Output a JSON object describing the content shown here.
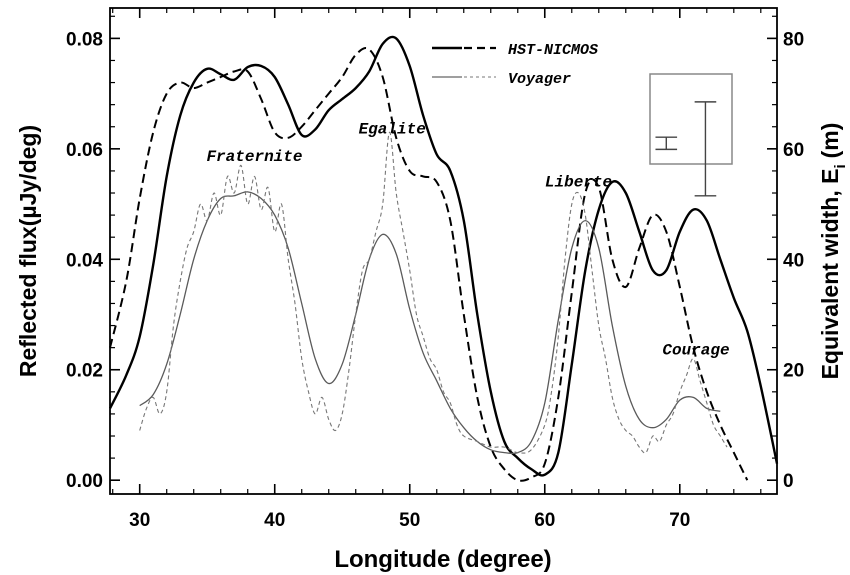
{
  "chart_data": {
    "type": "line",
    "xlabel": "Longitude (degree)",
    "ylabel_left": "Reflected flux(µJy/deg)",
    "ylabel_right": "Equivalent width, E",
    "ylabel_right_subscript": "i",
    "ylabel_right_unit": "(m)",
    "xlim": [
      27.8,
      77.2
    ],
    "ylim_left": [
      -0.0025,
      0.0855
    ],
    "ylim_right": [
      -2.5,
      85.5
    ],
    "x_ticks": [
      30,
      40,
      50,
      60,
      70
    ],
    "y_left_ticks": [
      0.0,
      0.02,
      0.04,
      0.06,
      0.08
    ],
    "y_left_tick_labels": [
      "0.00",
      "0.02",
      "0.04",
      "0.06",
      "0.08"
    ],
    "y_right_ticks": [
      0,
      20,
      40,
      60,
      80
    ],
    "grid": false,
    "legend_position": "top-right",
    "legend": [
      {
        "group": "HST-NICMOS",
        "label": "HST-NICMOS"
      },
      {
        "group": "Voyager",
        "label": "Voyager"
      }
    ],
    "annotations": [
      {
        "text": "Fraternite",
        "x": 38.5,
        "y": 0.0578
      },
      {
        "text": "Egalite",
        "x": 48.7,
        "y": 0.0628
      },
      {
        "text": "Liberte",
        "x": 62.5,
        "y": 0.0532
      },
      {
        "text": "Courage",
        "x": 71.2,
        "y": 0.0228
      }
    ],
    "series": [
      {
        "name": "HST-NICMOS",
        "group": "HST-NICMOS",
        "style": "solid-thick",
        "axis": "left",
        "x": [
          27.8,
          29,
          30,
          31,
          32,
          33,
          34,
          35,
          36,
          37,
          38,
          39,
          40,
          41,
          42,
          43,
          44,
          45,
          46,
          47,
          48,
          49,
          50,
          51,
          52,
          53,
          54,
          55,
          56,
          57,
          58,
          59,
          60,
          61,
          62,
          63,
          64,
          65,
          66,
          67,
          68,
          69,
          70,
          71,
          72,
          73,
          74,
          75,
          76,
          77.2
        ],
        "y": [
          0.013,
          0.019,
          0.026,
          0.039,
          0.055,
          0.066,
          0.072,
          0.0745,
          0.0735,
          0.0725,
          0.0748,
          0.075,
          0.073,
          0.068,
          0.0625,
          0.0635,
          0.067,
          0.069,
          0.071,
          0.074,
          0.079,
          0.08,
          0.075,
          0.066,
          0.059,
          0.056,
          0.047,
          0.03,
          0.016,
          0.007,
          0.004,
          0.002,
          0.001,
          0.005,
          0.021,
          0.038,
          0.049,
          0.054,
          0.052,
          0.045,
          0.038,
          0.038,
          0.045,
          0.049,
          0.047,
          0.04,
          0.033,
          0.027,
          0.017,
          0.003
        ]
      },
      {
        "name": "HST-NICMOS",
        "group": "HST-NICMOS",
        "style": "dashed-thick",
        "axis": "right",
        "x": [
          27.8,
          29,
          30,
          31,
          32,
          33,
          34,
          35,
          36,
          37,
          38,
          39,
          40,
          41,
          42,
          43,
          44,
          45,
          46,
          47,
          48,
          49,
          50,
          51,
          52,
          53,
          54,
          55,
          56,
          57,
          58,
          59,
          60,
          61,
          62,
          63,
          64,
          65,
          66,
          67,
          68,
          69,
          70,
          71,
          72,
          73,
          74,
          75
        ],
        "y": [
          24,
          36,
          51,
          63,
          70,
          72,
          71,
          72,
          73,
          74,
          74,
          69,
          63,
          62,
          64,
          67,
          70,
          73,
          77,
          78,
          73,
          62,
          56,
          55,
          54,
          47,
          30,
          15,
          6,
          2,
          0,
          0.5,
          3,
          15,
          34,
          52,
          53,
          40,
          35,
          42,
          48,
          45,
          35,
          24,
          16,
          10,
          5,
          0
        ]
      },
      {
        "name": "Voyager",
        "group": "Voyager",
        "style": "solid-thin",
        "axis": "left",
        "x": [
          30,
          31,
          32,
          33,
          34,
          35,
          36,
          37,
          38,
          39,
          40,
          41,
          42,
          43,
          44,
          45,
          46,
          47,
          48,
          49,
          50,
          51,
          52,
          53,
          54,
          55,
          56,
          57,
          58,
          59,
          60,
          61,
          62,
          63,
          64,
          65,
          66,
          67,
          68,
          69,
          70,
          71,
          72,
          73
        ],
        "y": [
          0.0135,
          0.0155,
          0.021,
          0.03,
          0.04,
          0.047,
          0.051,
          0.0515,
          0.0522,
          0.051,
          0.048,
          0.042,
          0.032,
          0.022,
          0.0175,
          0.021,
          0.03,
          0.04,
          0.0445,
          0.041,
          0.031,
          0.023,
          0.018,
          0.013,
          0.0095,
          0.007,
          0.0055,
          0.005,
          0.005,
          0.007,
          0.014,
          0.029,
          0.042,
          0.047,
          0.042,
          0.028,
          0.017,
          0.011,
          0.0095,
          0.011,
          0.0145,
          0.015,
          0.013,
          0.0125
        ]
      },
      {
        "name": "Voyager",
        "group": "Voyager",
        "style": "dashed-thin",
        "axis": "right",
        "x": [
          30,
          30.5,
          31,
          31.5,
          32,
          32.5,
          33,
          33.5,
          34,
          34.5,
          35,
          35.5,
          36,
          36.5,
          37,
          37.5,
          38,
          38.5,
          39,
          39.5,
          40,
          40.5,
          41,
          41.5,
          42,
          42.5,
          43,
          43.5,
          44,
          44.5,
          45,
          45.5,
          46,
          46.5,
          47,
          47.5,
          48,
          48.5,
          49,
          49.5,
          50,
          50.5,
          51,
          51.5,
          52,
          52.5,
          53,
          53.5,
          54,
          55,
          56,
          57,
          58,
          59,
          60,
          60.5,
          61,
          61.5,
          62,
          62.5,
          63,
          63.5,
          64,
          64.5,
          65,
          65.5,
          66,
          66.5,
          67,
          67.5,
          68,
          68.5,
          69,
          69.5,
          70,
          70.5,
          71,
          71.5,
          72,
          72.5,
          73,
          73.5
        ],
        "y": [
          9,
          13,
          15,
          12,
          16,
          28,
          36,
          42,
          45,
          50,
          47,
          52,
          48,
          55,
          52,
          57,
          50,
          55,
          49,
          53,
          45,
          50,
          40,
          32,
          22,
          16,
          12,
          15,
          11,
          9,
          12,
          20,
          30,
          38,
          40,
          45,
          50,
          63,
          52,
          45,
          38,
          30,
          26,
          22,
          20,
          16,
          14,
          10,
          8,
          7,
          6,
          6,
          5,
          5.5,
          10,
          16,
          26,
          40,
          50,
          52,
          48,
          38,
          28,
          22,
          15,
          11,
          9,
          8,
          6,
          5,
          8,
          7,
          10,
          12,
          16,
          19,
          22,
          18,
          14,
          10,
          8,
          6
        ]
      }
    ],
    "error_bars": [
      {
        "x": 69.0,
        "y": 61.0,
        "half_height": 1.1,
        "half_width": 0.8
      },
      {
        "x": 71.9,
        "y": 60.0,
        "half_height": 8.5,
        "half_width": 0.8
      }
    ]
  }
}
